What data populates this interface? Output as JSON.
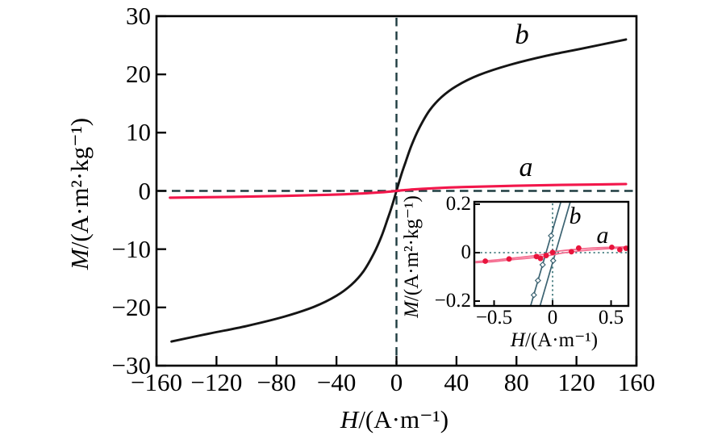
{
  "colors": {
    "background": "#ffffff",
    "axis": "#000000",
    "curve_b": "#151515",
    "curve_a": "#f2174b",
    "inset_b_line": "#3c6372",
    "inset_a_line": "#f56e91",
    "inset_a_marker": "#e8143c",
    "dashed_ref": "#1e3c40",
    "dotted_ref": "#2f6d70"
  },
  "main": {
    "ylabel_var": "M",
    "ylabel_rest": "/(A·m²·kg⁻¹)",
    "xlabel_var": "H",
    "xlabel_rest": "/(A·m⁻¹)",
    "label_a": "a",
    "label_b": "b",
    "x_ticks": [
      {
        "v": -160,
        "t": "−160"
      },
      {
        "v": -120,
        "t": "−120"
      },
      {
        "v": -80,
        "t": "−80"
      },
      {
        "v": -40,
        "t": "−40"
      },
      {
        "v": 0,
        "t": "0"
      },
      {
        "v": 40,
        "t": "40"
      },
      {
        "v": 80,
        "t": "80"
      },
      {
        "v": 120,
        "t": "120"
      },
      {
        "v": 160,
        "t": "160"
      }
    ],
    "y_ticks": [
      {
        "v": 30,
        "t": "30"
      },
      {
        "v": 20,
        "t": "20"
      },
      {
        "v": 10,
        "t": "10"
      },
      {
        "v": 0,
        "t": "0"
      },
      {
        "v": -10,
        "t": "−10"
      },
      {
        "v": -20,
        "t": "−20"
      },
      {
        "v": -30,
        "t": "−30"
      }
    ]
  },
  "inset": {
    "ylabel_var": "M",
    "ylabel_rest": "/(A·m²·kg⁻¹)",
    "xlabel_var": "H",
    "xlabel_rest": "/(A·m⁻¹)",
    "label_a": "a",
    "label_b": "b",
    "x_ticks": [
      {
        "v": -0.5,
        "t": "−0.5"
      },
      {
        "v": 0,
        "t": "0"
      },
      {
        "v": 0.5,
        "t": "0.5"
      }
    ],
    "y_ticks": [
      {
        "v": 0.2,
        "t": "0.2"
      },
      {
        "v": 0,
        "t": "0"
      },
      {
        "v": -0.2,
        "t": "−0.2"
      }
    ]
  },
  "chart_data": [
    {
      "id": "main",
      "type": "line",
      "title": "",
      "xlabel": "H/(A·m⁻¹)",
      "ylabel": "M/(A·m²·kg⁻¹)",
      "xlim": [
        -160,
        160
      ],
      "ylim": [
        -30,
        30
      ],
      "x_ticks": [
        -160,
        -120,
        -80,
        -40,
        0,
        40,
        80,
        120,
        160
      ],
      "y_ticks": [
        30,
        20,
        10,
        0,
        -10,
        -20,
        -30
      ],
      "grid": false,
      "legend": "inline curve labels a, b",
      "reference_lines": [
        {
          "axis": "x",
          "value": 0,
          "style": "dashed"
        },
        {
          "axis": "y",
          "value": 0,
          "style": "dashed"
        }
      ],
      "series": [
        {
          "name": "b",
          "points": [
            [
              -150,
              -25.85
            ],
            [
              -125,
              -24.5
            ],
            [
              -100,
              -23.2
            ],
            [
              -75,
              -21.6
            ],
            [
              -55,
              -19.9
            ],
            [
              -40,
              -18.0
            ],
            [
              -30,
              -16.1
            ],
            [
              -22,
              -13.8
            ],
            [
              -15,
              -10.7
            ],
            [
              -10,
              -7.8
            ],
            [
              -6,
              -4.9
            ],
            [
              -3,
              -2.6
            ],
            [
              0,
              0
            ],
            [
              3,
              2.6
            ],
            [
              6,
              4.9
            ],
            [
              10,
              7.8
            ],
            [
              15,
              10.7
            ],
            [
              22,
              13.8
            ],
            [
              30,
              16.1
            ],
            [
              40,
              18.0
            ],
            [
              55,
              19.9
            ],
            [
              75,
              21.6
            ],
            [
              100,
              23.2
            ],
            [
              125,
              24.5
            ],
            [
              153,
              26.0
            ]
          ]
        },
        {
          "name": "a",
          "points": [
            [
              -151,
              -1.17
            ],
            [
              -110,
              -1.02
            ],
            [
              -75,
              -0.86
            ],
            [
              -45,
              -0.66
            ],
            [
              -25,
              -0.46
            ],
            [
              -12,
              -0.27
            ],
            [
              -5,
              -0.13
            ],
            [
              0,
              0
            ],
            [
              5,
              0.13
            ],
            [
              12,
              0.27
            ],
            [
              25,
              0.46
            ],
            [
              45,
              0.66
            ],
            [
              75,
              0.86
            ],
            [
              110,
              1.02
            ],
            [
              153,
              1.18
            ]
          ]
        }
      ]
    },
    {
      "id": "inset",
      "type": "line",
      "title": "",
      "xlabel": "H/(A·m⁻¹)",
      "ylabel": "M/(A·m²·kg⁻¹)",
      "xlim": [
        -0.669,
        0.648
      ],
      "ylim": [
        -0.22,
        0.21
      ],
      "x_ticks": [
        -0.5,
        0,
        0.5
      ],
      "y_ticks": [
        0.2,
        0,
        -0.2
      ],
      "grid": false,
      "reference_lines": [
        {
          "axis": "x",
          "value": 0,
          "style": "dotted"
        },
        {
          "axis": "y",
          "value": 0,
          "style": "dotted"
        }
      ],
      "series": [
        {
          "name": "b-ascending-branch",
          "points": [
            [
              -0.2,
              -0.24
            ],
            [
              0.08,
              0.225
            ]
          ]
        },
        {
          "name": "b-descending-branch",
          "points": [
            [
              -0.11,
              -0.224
            ],
            [
              0.155,
              0.216
            ]
          ]
        },
        {
          "name": "a-upper-branch",
          "points": [
            [
              -0.66,
              -0.037
            ],
            [
              -0.5,
              -0.031
            ],
            [
              -0.37,
              -0.024
            ],
            [
              -0.25,
              -0.018
            ],
            [
              -0.15,
              -0.012
            ],
            [
              -0.08,
              -0.007
            ],
            [
              0,
              0.002
            ],
            [
              0.08,
              0.008
            ],
            [
              0.16,
              0.012
            ],
            [
              0.25,
              0.016
            ],
            [
              0.37,
              0.02
            ],
            [
              0.5,
              0.022
            ],
            [
              0.64,
              0.024
            ]
          ]
        },
        {
          "name": "a-lower-branch",
          "points": [
            [
              -0.66,
              -0.041
            ],
            [
              -0.5,
              -0.037
            ],
            [
              -0.37,
              -0.03
            ],
            [
              -0.25,
              -0.025
            ],
            [
              -0.15,
              -0.02
            ],
            [
              -0.08,
              -0.016
            ],
            [
              0,
              -0.009
            ],
            [
              0.08,
              -0.002
            ],
            [
              0.16,
              0.003
            ],
            [
              0.25,
              0.008
            ],
            [
              0.37,
              0.013
            ],
            [
              0.5,
              0.017
            ],
            [
              0.64,
              0.02
            ]
          ]
        }
      ],
      "markers": {
        "a_points": [
          [
            -0.575,
            -0.035
          ],
          [
            -0.372,
            -0.026
          ],
          [
            -0.138,
            -0.016
          ],
          [
            -0.103,
            -0.024
          ],
          [
            -0.055,
            -0.012
          ],
          [
            0,
            0.001
          ],
          [
            0.161,
            0.004
          ],
          [
            0.223,
            0.019
          ],
          [
            0.506,
            0.022
          ],
          [
            0.575,
            0.012
          ],
          [
            0.628,
            0.018
          ]
        ],
        "b_points": [
          [
            -0.013,
            0.07
          ],
          [
            -0.085,
            -0.05
          ],
          [
            -0.125,
            -0.115
          ],
          [
            -0.16,
            -0.175
          ],
          [
            0.005,
            -0.033
          ]
        ]
      }
    }
  ]
}
